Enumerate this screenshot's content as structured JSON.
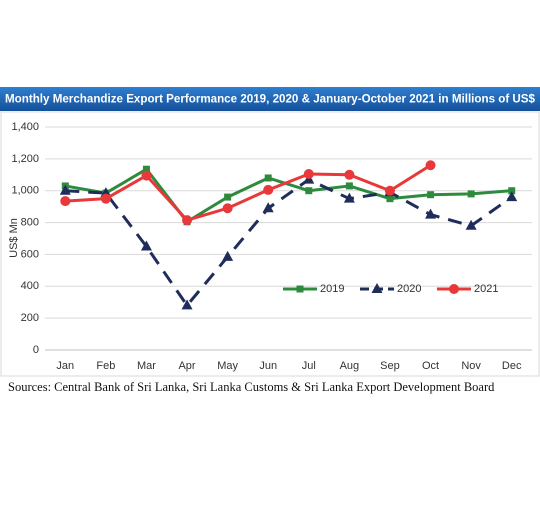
{
  "chart_data": {
    "type": "line",
    "title": "Monthly Merchandize Export Performance 2019, 2020 & January-October 2021 in Millions of US$",
    "y_label": "US$ Mn",
    "source": "Sources: Central Bank of Sri Lanka, Sri Lanka Customs & Sri Lanka Export Development Board",
    "categories": [
      "Jan",
      "Feb",
      "Mar",
      "Apr",
      "May",
      "Jun",
      "Jul",
      "Aug",
      "Sep",
      "Oct",
      "Nov",
      "Dec"
    ],
    "series": [
      {
        "name": "2019",
        "color": "#2e8b3e",
        "marker": "square",
        "dashed": false,
        "values": [
          1030,
          985,
          1135,
          805,
          960,
          1080,
          1000,
          1030,
          950,
          975,
          980,
          1000
        ]
      },
      {
        "name": "2020",
        "color": "#1f2d5a",
        "marker": "triangle",
        "dashed": true,
        "values": [
          1000,
          985,
          650,
          280,
          585,
          890,
          1070,
          950,
          990,
          850,
          780,
          960
        ]
      },
      {
        "name": "2021",
        "color": "#e8383a",
        "marker": "circle",
        "dashed": false,
        "values": [
          935,
          950,
          1095,
          815,
          890,
          1005,
          1105,
          1100,
          1000,
          1160,
          null,
          null
        ]
      }
    ],
    "ylim": [
      0,
      1400
    ],
    "yticks": [
      0,
      200,
      400,
      600,
      800,
      {
        "value": 1000,
        "label": "1,000"
      },
      {
        "value": 1200,
        "label": "1,200"
      },
      {
        "value": 1400,
        "label": "1,400"
      }
    ],
    "grid": true,
    "legend": "lower right"
  }
}
